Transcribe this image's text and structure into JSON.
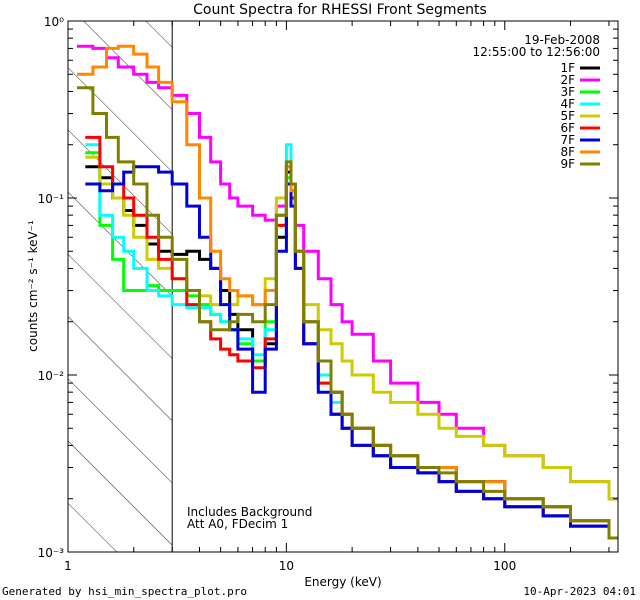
{
  "chart_data": {
    "type": "line",
    "title": "Count Spectra for RHESSI Front Segments",
    "xlabel": "Energy (keV)",
    "ylabel": "counts cm⁻² s⁻¹ keV⁻¹",
    "xscale": "log",
    "yscale": "log",
    "xlim": [
      1,
      330
    ],
    "ylim": [
      0.001,
      1.0
    ],
    "x_ticks": [
      {
        "value": 1,
        "label": "1"
      },
      {
        "value": 10,
        "label": "10"
      },
      {
        "value": 100,
        "label": "100"
      }
    ],
    "y_ticks": [
      {
        "value": 0.001,
        "label": "10⁻³"
      },
      {
        "value": 0.01,
        "label": "10⁻²"
      },
      {
        "value": 0.1,
        "label": "10⁻¹"
      },
      {
        "value": 1,
        "label": "10⁰"
      }
    ],
    "date": "19-Feb-2008",
    "time_range": "12:55:00 to 12:56:00",
    "annotation_lines": [
      "Includes Background",
      "Att A0, FDecim 1"
    ],
    "hatched_region_xmax": 3,
    "legend_position": "top-right",
    "series": [
      {
        "name": "1F",
        "color": "#000000",
        "x": [
          1.2,
          1.4,
          1.6,
          1.8,
          2.0,
          2.3,
          2.6,
          3.0,
          3.5,
          4.0,
          4.5,
          5.0,
          5.5,
          6.0,
          7.0,
          8.0,
          9.0,
          10.0,
          10.5,
          11.0,
          12,
          14,
          16,
          18,
          20,
          25,
          30,
          40,
          50,
          60,
          80,
          100,
          150,
          200,
          300
        ],
        "values": [
          0.15,
          0.13,
          0.1,
          0.085,
          0.07,
          0.055,
          0.05,
          0.048,
          0.05,
          0.045,
          0.04,
          0.03,
          0.022,
          0.018,
          0.012,
          0.015,
          0.06,
          0.14,
          0.11,
          0.05,
          0.02,
          0.012,
          0.008,
          0.006,
          0.005,
          0.004,
          0.0035,
          0.003,
          0.003,
          0.0025,
          0.0025,
          0.002,
          0.0018,
          0.0015,
          0.0012
        ]
      },
      {
        "name": "2F",
        "color": "#ff00ff",
        "x": [
          1.1,
          1.3,
          1.5,
          1.7,
          2.0,
          2.3,
          2.6,
          3.0,
          3.5,
          4.0,
          4.5,
          5.0,
          5.5,
          6.0,
          7.0,
          8.0,
          9.0,
          10.0,
          10.5,
          11.0,
          12,
          14,
          16,
          18,
          20,
          25,
          30,
          40,
          50,
          60,
          80,
          100,
          150,
          200,
          300
        ],
        "values": [
          0.72,
          0.7,
          0.62,
          0.55,
          0.5,
          0.45,
          0.42,
          0.38,
          0.3,
          0.22,
          0.16,
          0.12,
          0.1,
          0.09,
          0.08,
          0.075,
          0.09,
          0.12,
          0.1,
          0.07,
          0.05,
          0.035,
          0.025,
          0.02,
          0.017,
          0.012,
          0.009,
          0.007,
          0.006,
          0.005,
          0.004,
          0.0035,
          0.003,
          0.0025,
          0.002
        ]
      },
      {
        "name": "3F",
        "color": "#00ff00",
        "x": [
          1.2,
          1.4,
          1.6,
          1.8,
          2.0,
          2.3,
          2.6,
          3.0,
          3.5,
          4.0,
          4.5,
          5.0,
          5.5,
          6.0,
          7.0,
          8.0,
          9.0,
          10.0,
          10.5,
          11.0,
          12,
          14,
          16,
          18,
          20,
          25,
          30,
          40,
          50,
          60,
          80,
          100,
          150,
          200,
          300
        ],
        "values": [
          0.18,
          0.07,
          0.045,
          0.03,
          0.03,
          0.032,
          0.03,
          0.03,
          0.028,
          0.025,
          0.022,
          0.02,
          0.018,
          0.015,
          0.012,
          0.02,
          0.07,
          0.13,
          0.1,
          0.04,
          0.015,
          0.009,
          0.006,
          0.005,
          0.004,
          0.0035,
          0.003,
          0.0028,
          0.0025,
          0.0022,
          0.002,
          0.0018,
          0.0016,
          0.0014,
          0.0012
        ]
      },
      {
        "name": "4F",
        "color": "#00ffff",
        "x": [
          1.2,
          1.4,
          1.6,
          1.8,
          2.0,
          2.3,
          2.6,
          3.0,
          3.5,
          4.0,
          4.5,
          5.0,
          5.5,
          6.0,
          7.0,
          8.0,
          9.0,
          10.0,
          10.5,
          11.0,
          12,
          14,
          16,
          18,
          20,
          25,
          30,
          40,
          50,
          60,
          80,
          100,
          150,
          200,
          300
        ],
        "values": [
          0.2,
          0.08,
          0.06,
          0.05,
          0.04,
          0.03,
          0.028,
          0.025,
          0.024,
          0.024,
          0.022,
          0.02,
          0.018,
          0.016,
          0.013,
          0.018,
          0.08,
          0.2,
          0.12,
          0.05,
          0.02,
          0.01,
          0.007,
          0.005,
          0.004,
          0.0035,
          0.003,
          0.0028,
          0.0025,
          0.0022,
          0.002,
          0.0018,
          0.0016,
          0.0014,
          0.0012
        ]
      },
      {
        "name": "5F",
        "color": "#cccc00",
        "x": [
          1.2,
          1.4,
          1.6,
          1.8,
          2.0,
          2.3,
          2.6,
          3.0,
          3.5,
          4.0,
          4.5,
          5.0,
          5.5,
          6.0,
          7.0,
          8.0,
          9.0,
          10.0,
          10.5,
          11.0,
          12,
          14,
          16,
          18,
          20,
          25,
          30,
          40,
          50,
          60,
          80,
          100,
          150,
          200,
          300
        ],
        "values": [
          0.17,
          0.12,
          0.1,
          0.08,
          0.06,
          0.045,
          0.04,
          0.035,
          0.03,
          0.028,
          0.025,
          0.025,
          0.025,
          0.028,
          0.025,
          0.035,
          0.1,
          0.15,
          0.12,
          0.05,
          0.025,
          0.018,
          0.015,
          0.012,
          0.01,
          0.008,
          0.007,
          0.006,
          0.005,
          0.0045,
          0.004,
          0.0035,
          0.003,
          0.0025,
          0.002
        ]
      },
      {
        "name": "6F",
        "color": "#ff0000",
        "x": [
          1.2,
          1.4,
          1.6,
          1.8,
          2.0,
          2.3,
          2.6,
          3.0,
          3.5,
          4.0,
          4.5,
          5.0,
          5.5,
          6.0,
          7.0,
          8.0,
          9.0,
          10.0,
          10.5,
          11.0,
          12,
          14,
          16,
          18,
          20,
          25,
          30,
          40,
          50,
          60,
          80,
          100,
          150,
          200,
          300
        ],
        "values": [
          0.22,
          0.15,
          0.12,
          0.1,
          0.08,
          0.06,
          0.045,
          0.035,
          0.025,
          0.02,
          0.016,
          0.014,
          0.013,
          0.012,
          0.011,
          0.016,
          0.07,
          0.15,
          0.1,
          0.04,
          0.015,
          0.009,
          0.006,
          0.005,
          0.004,
          0.0035,
          0.003,
          0.0028,
          0.0025,
          0.0022,
          0.002,
          0.0018,
          0.0016,
          0.0014,
          0.0012
        ]
      },
      {
        "name": "7F",
        "color": "#0000dd",
        "x": [
          1.2,
          1.4,
          1.6,
          1.8,
          2.0,
          2.3,
          2.6,
          3.0,
          3.5,
          4.0,
          4.5,
          5.0,
          5.5,
          6.0,
          7.0,
          8.0,
          9.0,
          10.0,
          10.5,
          11.0,
          12,
          14,
          16,
          18,
          20,
          25,
          30,
          40,
          50,
          60,
          80,
          100,
          150,
          200,
          300
        ],
        "values": [
          0.12,
          0.11,
          0.12,
          0.14,
          0.15,
          0.15,
          0.14,
          0.12,
          0.09,
          0.06,
          0.04,
          0.025,
          0.018,
          0.014,
          0.008,
          0.014,
          0.05,
          0.12,
          0.09,
          0.04,
          0.015,
          0.008,
          0.006,
          0.005,
          0.004,
          0.0035,
          0.003,
          0.0028,
          0.0025,
          0.0022,
          0.002,
          0.0018,
          0.0016,
          0.0014,
          0.0012
        ]
      },
      {
        "name": "8F",
        "color": "#ff8800",
        "x": [
          1.1,
          1.3,
          1.5,
          1.7,
          2.0,
          2.3,
          2.6,
          3.0,
          3.5,
          4.0,
          4.5,
          5.0,
          5.5,
          6.0,
          7.0,
          8.0,
          9.0,
          10.0,
          10.5,
          11.0,
          12,
          14,
          16,
          18,
          20,
          25,
          30,
          40,
          50,
          60,
          80,
          100,
          150,
          200,
          300
        ],
        "values": [
          0.5,
          0.55,
          0.7,
          0.72,
          0.65,
          0.55,
          0.45,
          0.35,
          0.2,
          0.1,
          0.05,
          0.035,
          0.03,
          0.028,
          0.025,
          0.03,
          0.08,
          0.15,
          0.11,
          0.05,
          0.02,
          0.012,
          0.008,
          0.006,
          0.005,
          0.004,
          0.0035,
          0.003,
          0.003,
          0.0025,
          0.0025,
          0.002,
          0.0018,
          0.0015,
          0.0012
        ]
      },
      {
        "name": "9F",
        "color": "#808000",
        "x": [
          1.1,
          1.3,
          1.5,
          1.7,
          2.0,
          2.3,
          2.6,
          3.0,
          3.5,
          4.0,
          4.5,
          5.0,
          5.5,
          6.0,
          7.0,
          8.0,
          9.0,
          10.0,
          10.5,
          11.0,
          12,
          14,
          16,
          18,
          20,
          25,
          30,
          40,
          50,
          60,
          80,
          100,
          150,
          200,
          300
        ],
        "values": [
          0.42,
          0.3,
          0.22,
          0.16,
          0.12,
          0.08,
          0.06,
          0.045,
          0.03,
          0.02,
          0.018,
          0.018,
          0.02,
          0.022,
          0.02,
          0.025,
          0.08,
          0.16,
          0.12,
          0.05,
          0.02,
          0.012,
          0.008,
          0.006,
          0.005,
          0.004,
          0.0035,
          0.003,
          0.0028,
          0.0025,
          0.0022,
          0.002,
          0.0018,
          0.0015,
          0.0012
        ]
      }
    ]
  },
  "footer": {
    "generated_by": "Generated by hsi_min_spectra_plot.pro",
    "timestamp": "10-Apr-2023 04:01"
  }
}
